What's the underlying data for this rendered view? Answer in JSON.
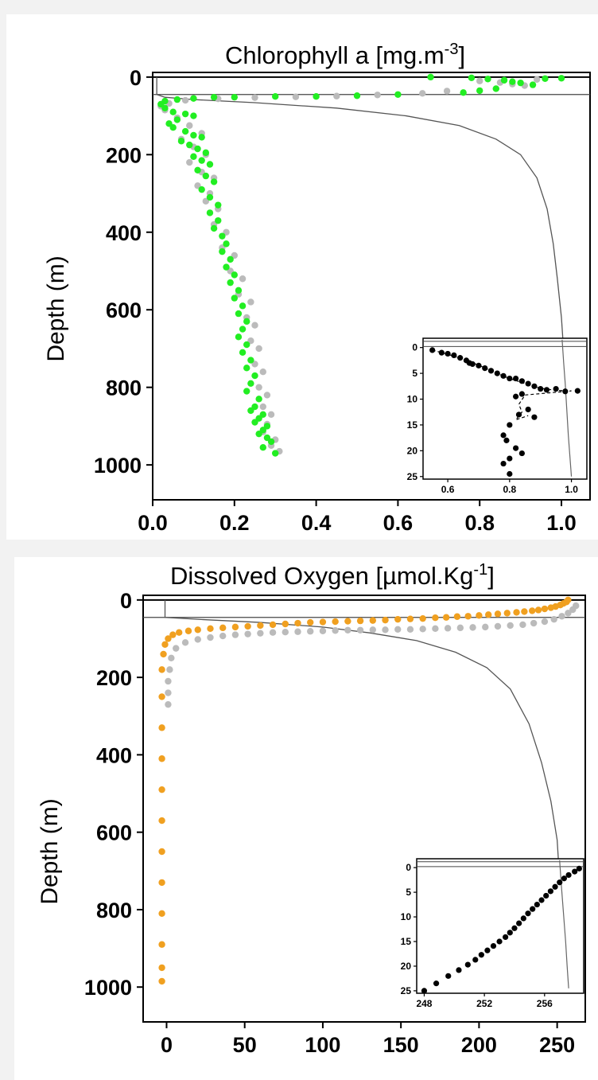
{
  "chart_data": [
    {
      "type": "scatter",
      "title": "Chlorophyll a [mg.m",
      "title_superscript": "-3",
      "title_suffix": "]",
      "xlabel": "",
      "ylabel": "Depth (m)",
      "xlim": [
        0.0,
        1.07
      ],
      "ylim": [
        1090,
        -12
      ],
      "x_ticks": [
        "0.0",
        "0.2",
        "0.4",
        "0.6",
        "0.8",
        "1.0"
      ],
      "x_tick_values": [
        0.0,
        0.2,
        0.4,
        0.6,
        0.8,
        1.0
      ],
      "y_ticks": [
        "0",
        "200",
        "400",
        "600",
        "800",
        "1000"
      ],
      "y_tick_values": [
        0,
        200,
        400,
        600,
        800,
        1000
      ],
      "grid": false,
      "colors": {
        "primary": "#22ee22",
        "secondary": "#bbbbbb",
        "line": "#555555",
        "inset_points": "#000000"
      },
      "series": [
        {
          "x": [
            0.68,
            0.78,
            0.82,
            0.86,
            0.88,
            0.9,
            0.93,
            0.96,
            1.0,
            0.84,
            0.8,
            0.76,
            0.6,
            0.5,
            0.4,
            0.3,
            0.2,
            0.15,
            0.1,
            0.06,
            0.03,
            0.02,
            0.03,
            0.05,
            0.08,
            0.1,
            0.06,
            0.04,
            0.05,
            0.08,
            0.1,
            0.12,
            0.07,
            0.09,
            0.11,
            0.13,
            0.1,
            0.12,
            0.14,
            0.11,
            0.13,
            0.15,
            0.12,
            0.14,
            0.16,
            0.14,
            0.16,
            0.15,
            0.17,
            0.18,
            0.17,
            0.19,
            0.18,
            0.2,
            0.19,
            0.21,
            0.2,
            0.22,
            0.21,
            0.23,
            0.22,
            0.21,
            0.23,
            0.22,
            0.24,
            0.23,
            0.25,
            0.24,
            0.23,
            0.26,
            0.25,
            0.24,
            0.27,
            0.26,
            0.25,
            0.28,
            0.27,
            0.26,
            0.28,
            0.29,
            0.27,
            0.3
          ],
          "y": [
            0,
            2,
            5,
            8,
            12,
            15,
            20,
            4,
            3,
            30,
            35,
            40,
            45,
            48,
            50,
            50,
            52,
            52,
            55,
            58,
            62,
            70,
            80,
            90,
            95,
            100,
            110,
            120,
            130,
            140,
            150,
            155,
            165,
            175,
            185,
            195,
            205,
            215,
            225,
            240,
            255,
            270,
            290,
            310,
            330,
            350,
            370,
            390,
            410,
            430,
            450,
            470,
            490,
            510,
            530,
            550,
            570,
            590,
            610,
            630,
            650,
            670,
            690,
            710,
            730,
            750,
            770,
            790,
            810,
            830,
            850,
            860,
            870,
            880,
            890,
            900,
            910,
            920,
            930,
            940,
            955,
            970
          ]
        },
        {
          "x": [
            0.8,
            0.85,
            0.88,
            0.91,
            0.94,
            0.72,
            0.66,
            0.55,
            0.45,
            0.35,
            0.25,
            0.16,
            0.08,
            0.04,
            0.02,
            0.03,
            0.06,
            0.09,
            0.12,
            0.07,
            0.1,
            0.13,
            0.09,
            0.12,
            0.15,
            0.11,
            0.14,
            0.13,
            0.16,
            0.15,
            0.18,
            0.17,
            0.2,
            0.19,
            0.22,
            0.21,
            0.24,
            0.23,
            0.25,
            0.24,
            0.26,
            0.25,
            0.27,
            0.26,
            0.28,
            0.27,
            0.29,
            0.28,
            0.27,
            0.3,
            0.29,
            0.31
          ],
          "y": [
            10,
            14,
            18,
            22,
            6,
            36,
            42,
            46,
            49,
            51,
            53,
            56,
            60,
            68,
            75,
            85,
            105,
            125,
            145,
            160,
            180,
            200,
            220,
            245,
            260,
            280,
            300,
            320,
            340,
            380,
            400,
            440,
            460,
            500,
            520,
            560,
            580,
            620,
            640,
            680,
            700,
            740,
            760,
            800,
            820,
            850,
            870,
            895,
            915,
            935,
            950,
            965
          ]
        }
      ],
      "reference_line": {
        "x": [
          0.01,
          0.01,
          0.03,
          0.1,
          0.25,
          0.45,
          0.62,
          0.75,
          0.84,
          0.9,
          0.94,
          0.965,
          0.98,
          0.99,
          1.0,
          1.01,
          1.02
        ],
        "y": [
          0,
          45,
          52,
          58,
          66,
          80,
          100,
          125,
          160,
          200,
          260,
          340,
          430,
          520,
          620,
          780,
          1000
        ]
      },
      "mld_line_y": 45,
      "inset": {
        "x_ticks": [
          "0.6",
          "0.8",
          "1.0"
        ],
        "x_tick_values": [
          0.6,
          0.8,
          1.0
        ],
        "y_ticks": [
          "0",
          "5",
          "10",
          "15",
          "20",
          "25"
        ],
        "y_tick_values": [
          0,
          5,
          10,
          15,
          20,
          25
        ],
        "xlim": [
          0.52,
          1.05
        ],
        "ylim": [
          25.5,
          -1.8
        ],
        "points_x": [
          0.55,
          0.58,
          0.6,
          0.62,
          0.64,
          0.66,
          0.67,
          0.68,
          0.7,
          0.72,
          0.74,
          0.76,
          0.78,
          0.8,
          0.82,
          0.84,
          0.86,
          0.88,
          0.9,
          0.92,
          0.95,
          0.98,
          1.02,
          0.84,
          0.82,
          0.86,
          0.88,
          0.83,
          0.8,
          0.78,
          0.79,
          0.82,
          0.84,
          0.8,
          0.78,
          0.8
        ],
        "points_y": [
          0.5,
          1.0,
          1.2,
          1.5,
          2.0,
          2.5,
          3.0,
          3.2,
          3.5,
          4.0,
          4.5,
          5.0,
          5.5,
          6.0,
          6.0,
          6.5,
          7.0,
          7.5,
          8.0,
          8.2,
          8.0,
          8.5,
          8.4,
          9.0,
          9.5,
          12.0,
          13.5,
          13.0,
          15.0,
          17.0,
          18.0,
          19.5,
          20.5,
          21.5,
          22.5,
          24.5
        ],
        "line_x": [
          0.55,
          0.6,
          0.65,
          0.7,
          0.75,
          0.8,
          0.85,
          0.9,
          0.95,
          1.0,
          0.85,
          0.83,
          0.84,
          0.82,
          0.86
        ],
        "line_y": [
          0.5,
          1.3,
          2.3,
          3.4,
          4.8,
          6.0,
          7.0,
          7.9,
          8.3,
          8.4,
          9.2,
          11.0,
          12.5,
          14.0,
          13.2
        ],
        "ref_x": [
          0.97,
          0.975,
          0.98,
          0.985,
          0.99,
          0.995,
          1.0
        ],
        "ref_y": [
          -1.5,
          3,
          7,
          12,
          17,
          21,
          25
        ]
      }
    },
    {
      "type": "scatter",
      "title": "Dissolved Oxygen [µmol.Kg",
      "title_superscript": "-1",
      "title_suffix": "]",
      "xlabel": "",
      "ylabel": "Depth (m)",
      "xlim": [
        -15,
        268
      ],
      "ylim": [
        1090,
        -12
      ],
      "x_ticks": [
        "0",
        "50",
        "100",
        "150",
        "200",
        "250"
      ],
      "x_tick_values": [
        0,
        50,
        100,
        150,
        200,
        250
      ],
      "y_ticks": [
        "0",
        "200",
        "400",
        "600",
        "800",
        "1000"
      ],
      "y_tick_values": [
        0,
        200,
        400,
        600,
        800,
        1000
      ],
      "grid": false,
      "colors": {
        "primary": "#f0a020",
        "secondary": "#bbbbbb",
        "line": "#555555",
        "inset_points": "#000000"
      },
      "series": [
        {
          "x": [
            257,
            256,
            254,
            252,
            249,
            246,
            242,
            238,
            234,
            229,
            224,
            218,
            212,
            206,
            200,
            193,
            186,
            179,
            172,
            164,
            156,
            148,
            140,
            132,
            124,
            116,
            108,
            100,
            92,
            84,
            76,
            68,
            60,
            52,
            44,
            36,
            28,
            20,
            14,
            8,
            4,
            1,
            -1,
            -2,
            -3,
            -3,
            -3,
            -3,
            -3,
            -3,
            -3,
            -3,
            -3,
            -3,
            -3,
            -3
          ],
          "y": [
            0,
            5,
            9,
            13,
            17,
            20,
            23,
            26,
            28,
            30,
            32,
            34,
            36,
            38,
            40,
            42,
            43,
            45,
            46,
            48,
            49,
            50,
            52,
            53,
            54,
            55,
            56,
            57,
            58,
            60,
            62,
            64,
            66,
            68,
            70,
            72,
            74,
            77,
            80,
            84,
            90,
            100,
            115,
            140,
            180,
            250,
            330,
            410,
            490,
            570,
            650,
            730,
            810,
            890,
            950,
            985
          ]
        },
        {
          "x": [
            262,
            260,
            257,
            253,
            248,
            242,
            235,
            228,
            220,
            212,
            204,
            196,
            188,
            180,
            172,
            164,
            156,
            148,
            140,
            132,
            124,
            116,
            108,
            100,
            92,
            84,
            76,
            68,
            60,
            52,
            44,
            36,
            28,
            20,
            12,
            6,
            3,
            2,
            1,
            1,
            1
          ],
          "y": [
            15,
            25,
            34,
            42,
            50,
            56,
            60,
            64,
            66,
            68,
            70,
            71,
            72,
            73,
            74,
            75,
            76,
            76,
            77,
            77,
            78,
            78,
            79,
            80,
            81,
            82,
            83,
            84,
            86,
            88,
            90,
            93,
            97,
            102,
            110,
            125,
            150,
            180,
            210,
            240,
            270
          ]
        }
      ],
      "reference_line": {
        "x": [
          -1,
          -1,
          20,
          60,
          100,
          130,
          160,
          185,
          205,
          220,
          232,
          240,
          246,
          250,
          252,
          254
        ],
        "y": [
          0,
          45,
          50,
          58,
          70,
          85,
          105,
          135,
          175,
          230,
          320,
          420,
          520,
          620,
          750,
          950
        ]
      },
      "mld_line_y": 45,
      "inset": {
        "x_ticks": [
          "248",
          "252",
          "256"
        ],
        "x_tick_values": [
          248,
          252,
          256
        ],
        "y_ticks": [
          "0",
          "5",
          "10",
          "15",
          "20",
          "25"
        ],
        "y_tick_values": [
          0,
          5,
          10,
          15,
          20,
          25
        ],
        "xlim": [
          247.5,
          258.6
        ],
        "ylim": [
          25.5,
          -1.8
        ],
        "points_x": [
          248.0,
          248.8,
          249.6,
          250.3,
          250.9,
          251.4,
          251.8,
          252.2,
          252.6,
          253.0,
          253.4,
          253.7,
          254.0,
          254.3,
          254.6,
          254.9,
          255.2,
          255.5,
          255.8,
          256.1,
          256.4,
          256.7,
          257.0,
          257.3,
          257.6,
          258.0,
          258.3
        ],
        "points_y": [
          25,
          23.5,
          22,
          20.8,
          19.7,
          18.7,
          17.7,
          16.8,
          15.9,
          15.0,
          14.1,
          13.2,
          12.3,
          11.3,
          10.3,
          9.3,
          8.4,
          7.5,
          6.6,
          5.7,
          4.8,
          3.9,
          3.0,
          2.2,
          1.5,
          0.8,
          0.2
        ],
        "ref_x": [
          257.0,
          257.1,
          257.2,
          257.3,
          257.4,
          257.5,
          257.6
        ],
        "ref_y": [
          -1.5,
          3,
          7,
          11,
          15,
          20,
          24.5
        ]
      }
    }
  ]
}
